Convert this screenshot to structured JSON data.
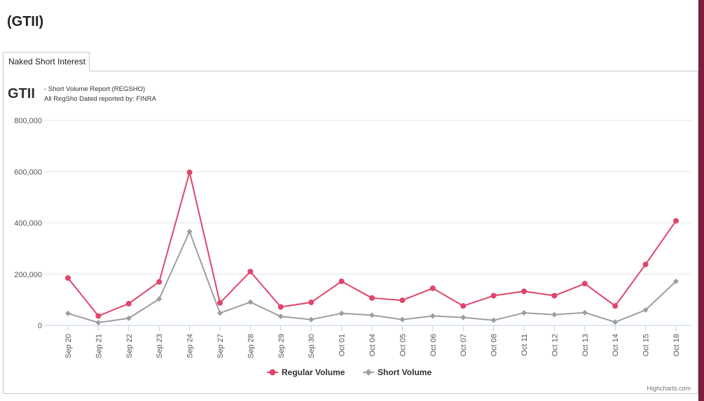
{
  "page": {
    "heading": "(GTII)",
    "tab_label": "Naked Short Interest"
  },
  "colors": {
    "regular": "#e0456b",
    "short": "#9e9e9e",
    "grid": "#e6e6e6",
    "accent_bar": "#7a1f3d"
  },
  "chart_data": {
    "type": "line",
    "title": "GTII",
    "subtitle_line1": "- Short Volume Report  (REGSHO)",
    "subtitle_line2": "All RegSho Dated reported by: FINRA",
    "categories": [
      "Sep 20",
      "Sep 21",
      "Sep 22",
      "Sep 23",
      "Sep 24",
      "Sep 27",
      "Sep 28",
      "Sep 29",
      "Sep 30",
      "Oct 01",
      "Oct 04",
      "Oct 05",
      "Oct 06",
      "Oct 07",
      "Oct 08",
      "Oct 11",
      "Oct 12",
      "Oct 13",
      "Oct 14",
      "Oct 15",
      "Oct 18"
    ],
    "ylim": [
      0,
      800000
    ],
    "yticks": [
      0,
      200000,
      400000,
      600000,
      800000
    ],
    "ytick_labels": [
      "0",
      "200,000",
      "400,000",
      "600,000",
      "800,000"
    ],
    "grid": true,
    "legend_position": "bottom-center",
    "series": [
      {
        "name": "Regular Volume",
        "marker": "circle",
        "values": [
          185000,
          37000,
          85000,
          170000,
          597000,
          88000,
          210000,
          72000,
          90000,
          172000,
          107000,
          98000,
          145000,
          76000,
          116000,
          133000,
          116000,
          163000,
          76000,
          238000,
          408000
        ]
      },
      {
        "name": "Short Volume",
        "marker": "diamond",
        "values": [
          47000,
          11000,
          28000,
          103000,
          366000,
          48000,
          91000,
          35000,
          23000,
          47000,
          40000,
          23000,
          37000,
          31000,
          20000,
          49000,
          42000,
          50000,
          13000,
          60000,
          172000
        ]
      }
    ],
    "credit": "Highcharts.com"
  }
}
